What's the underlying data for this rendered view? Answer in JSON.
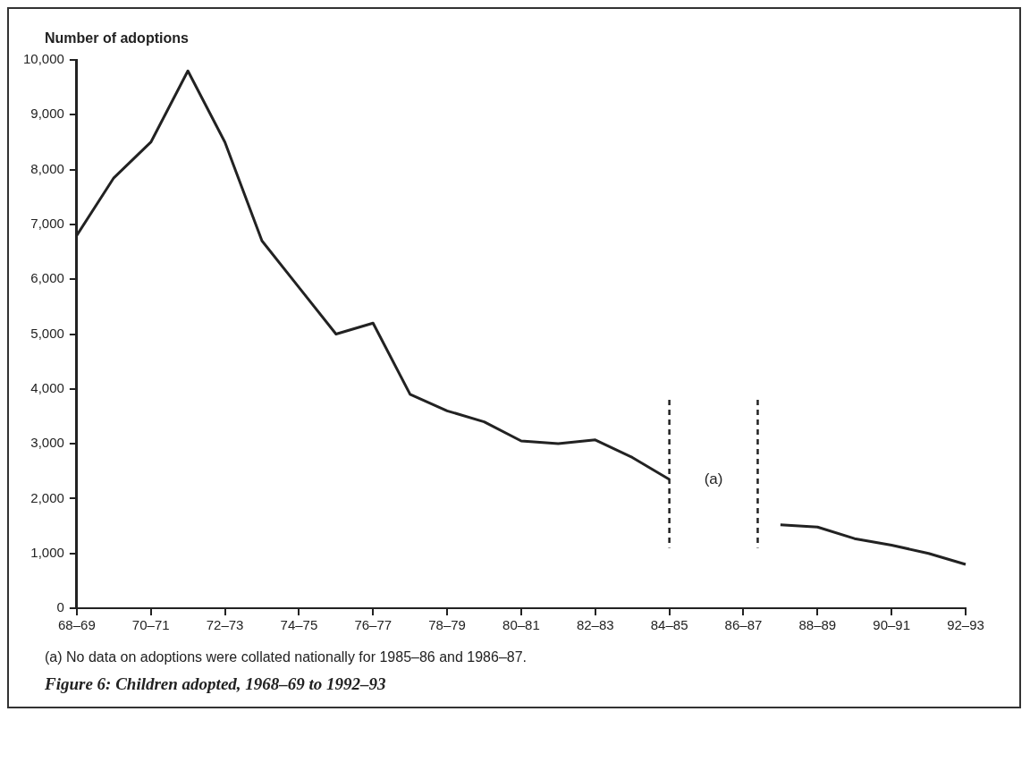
{
  "chart_data": {
    "type": "line",
    "title": "Figure 6: Children adopted, 1968–69 to 1992–93",
    "ylabel": "Number of adoptions",
    "categories": [
      "68–69",
      null,
      "70–71",
      null,
      "72–73",
      null,
      "74–75",
      null,
      "76–77",
      null,
      "78–79",
      null,
      "80–81",
      null,
      "82–83",
      null,
      "84–85",
      null,
      "86–87",
      null,
      "88–89",
      null,
      "90–91",
      null,
      "92–93"
    ],
    "series": [
      {
        "color": "#222222",
        "values": [
          6800,
          7850,
          8500,
          9800,
          8500,
          6700,
          5850,
          5000,
          5200,
          3900,
          3600,
          3400,
          3050,
          3000,
          3070,
          2750,
          2350,
          null,
          null,
          1520,
          1480,
          1270,
          1150,
          1000,
          800
        ]
      }
    ],
    "ylim": [
      0,
      10000
    ],
    "yticks": [
      0,
      {
        "value": 1000,
        "label": "1,000"
      },
      {
        "value": 2000,
        "label": "2,000"
      },
      {
        "value": 3000,
        "label": "3,000"
      },
      {
        "value": 4000,
        "label": "4,000"
      },
      {
        "value": 5000,
        "label": "5,000"
      },
      {
        "value": 6000,
        "label": "6,000"
      },
      {
        "value": 7000,
        "label": "7,000"
      },
      {
        "value": 8000,
        "label": "8,000"
      },
      {
        "value": 9000,
        "label": "9,000"
      },
      {
        "value": 10000,
        "label": "10,000"
      }
    ],
    "ref_lines": [
      {
        "axis": "x",
        "value": "84–85",
        "line_style": "dashed",
        "color": "#222222"
      },
      {
        "axis": "x",
        "value": "86–87",
        "line_style": "dashed",
        "color": "#222222"
      }
    ],
    "annotations": [
      "(a)",
      "(a) No data on adoptions were collated nationally for 1985–86 and 1986–87."
    ],
    "grid": false,
    "legend": false,
    "marker": "none",
    "line_style": "solid"
  }
}
